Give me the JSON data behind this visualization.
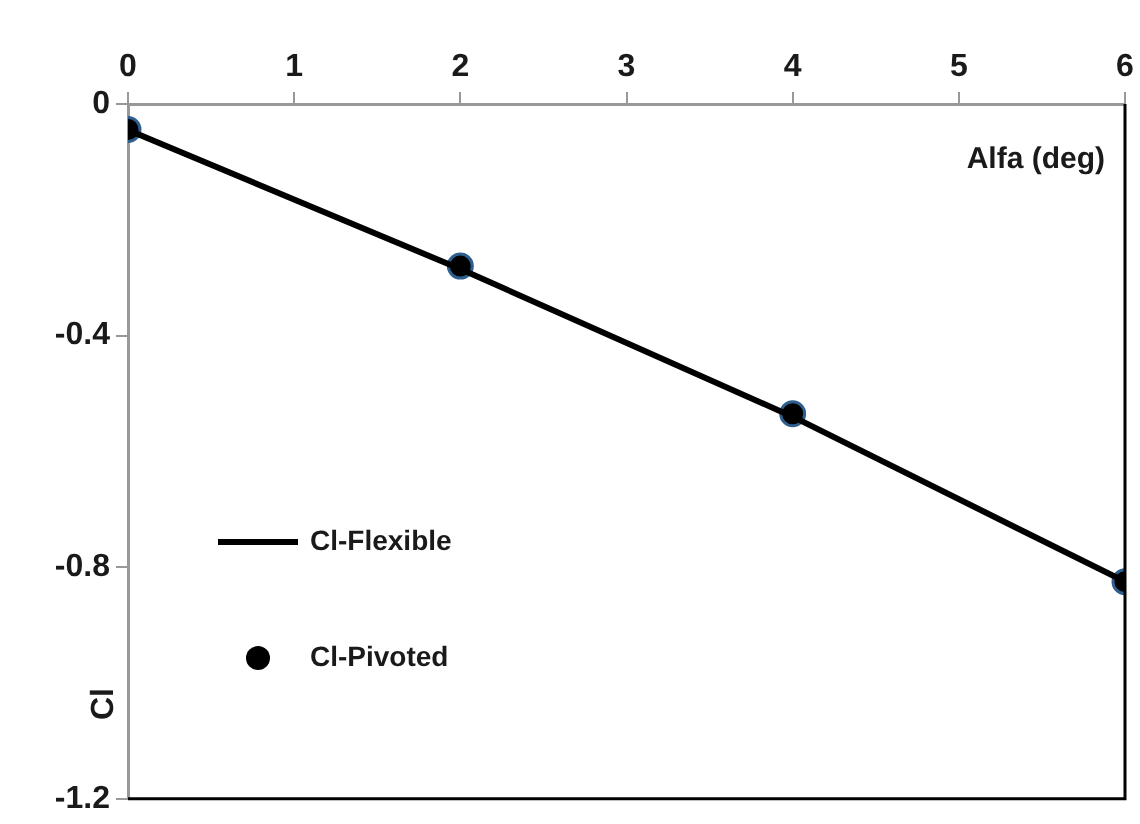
{
  "chart_data": {
    "type": "line",
    "xlabel": "Alfa (deg)",
    "ylabel": "Cl",
    "x": [
      0,
      2,
      4,
      6
    ],
    "xlim": [
      0,
      6
    ],
    "xticks": [
      0,
      1,
      2,
      3,
      4,
      5,
      6
    ],
    "ylim": [
      -1.2,
      0
    ],
    "yticks": [
      -1.2,
      -0.8,
      -0.4,
      0
    ],
    "grid": false,
    "legend": "left",
    "series": [
      {
        "name": "Cl-Flexible",
        "color": "#000000",
        "marker": "none",
        "line_style": "solid",
        "values": [
          -0.045,
          -0.285,
          -0.54,
          -0.825
        ]
      },
      {
        "name": "Cl-Pivoted",
        "type": "scatter",
        "color": "#000000",
        "marker": "circle",
        "values": [
          -0.044,
          -0.28,
          -0.535,
          -0.825
        ]
      }
    ]
  }
}
